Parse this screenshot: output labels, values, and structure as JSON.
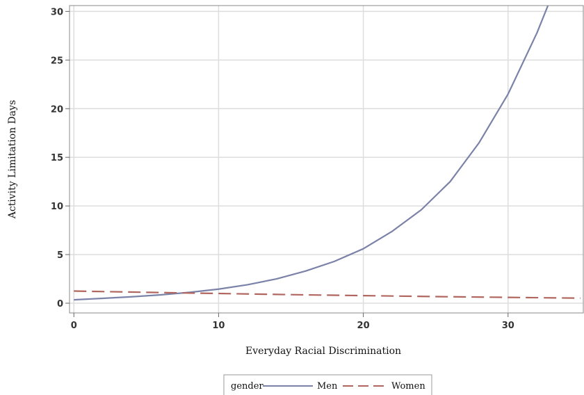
{
  "chart_data": {
    "type": "line",
    "title": "",
    "xlabel": "Everyday Racial Discrimination",
    "ylabel": "Activity Limitation Days",
    "xlim": [
      -0.3,
      35.2
    ],
    "ylim": [
      -1,
      30.6
    ],
    "x_ticks": [
      0,
      10,
      20,
      30
    ],
    "y_ticks": [
      0,
      5,
      10,
      15,
      20,
      25,
      30
    ],
    "grid": true,
    "legend": {
      "title": "gender",
      "position": "bottom-center",
      "entries": [
        "Men",
        "Women"
      ]
    },
    "series": [
      {
        "name": "Men",
        "style": "solid",
        "color": "#7b82a8",
        "x": [
          0,
          2,
          4,
          6,
          8,
          10,
          12,
          14,
          16,
          18,
          20,
          22,
          24,
          26,
          28,
          30,
          32,
          33
        ],
        "y": [
          0.35,
          0.5,
          0.66,
          0.86,
          1.12,
          1.45,
          1.9,
          2.5,
          3.3,
          4.3,
          5.6,
          7.4,
          9.6,
          12.5,
          16.5,
          21.5,
          27.8,
          31.5
        ]
      },
      {
        "name": "Women",
        "style": "dashed",
        "color": "#b0665e",
        "x": [
          0,
          5,
          10,
          15,
          20,
          25,
          30,
          35
        ],
        "y": [
          1.25,
          1.12,
          1.0,
          0.88,
          0.78,
          0.68,
          0.6,
          0.52
        ]
      }
    ]
  }
}
